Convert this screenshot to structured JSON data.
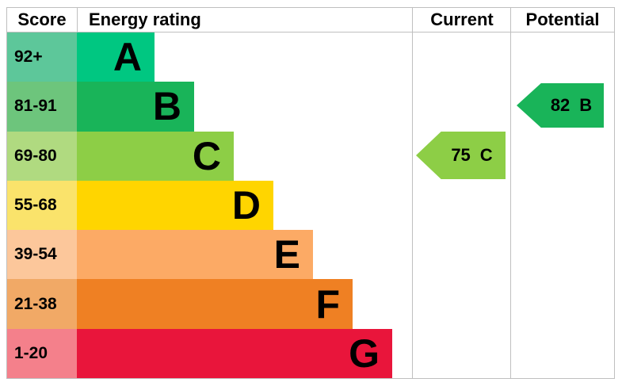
{
  "header": {
    "score": "Score",
    "energy_rating": "Energy rating",
    "current": "Current",
    "potential": "Potential"
  },
  "rows": [
    {
      "score": "92+",
      "letter": "A",
      "bar_color": "#00c781",
      "score_bg": "#5dc79a"
    },
    {
      "score": "81-91",
      "letter": "B",
      "bar_color": "#19b459",
      "score_bg": "#6dc57c"
    },
    {
      "score": "69-80",
      "letter": "C",
      "bar_color": "#8dce46",
      "score_bg": "#b0da80"
    },
    {
      "score": "55-68",
      "letter": "D",
      "bar_color": "#ffd500",
      "score_bg": "#fae36b"
    },
    {
      "score": "39-54",
      "letter": "E",
      "bar_color": "#fcaa65",
      "score_bg": "#fcc79b"
    },
    {
      "score": "21-38",
      "letter": "F",
      "bar_color": "#ef8023",
      "score_bg": "#f1a966"
    },
    {
      "score": "1-20",
      "letter": "G",
      "bar_color": "#e9153b",
      "score_bg": "#f4808b"
    }
  ],
  "markers": {
    "current": {
      "value": "75",
      "letter": "C",
      "color": "#8dce46"
    },
    "potential": {
      "value": "82",
      "letter": "B",
      "color": "#19b459"
    }
  },
  "colors": {
    "border": "#bfbfbf",
    "text": "#000000"
  },
  "chart_data": {
    "type": "bar",
    "title": "Energy rating (EPC band chart)",
    "categories": [
      "A",
      "B",
      "C",
      "D",
      "E",
      "F",
      "G"
    ],
    "score_ranges": [
      "92+",
      "81-91",
      "69-80",
      "55-68",
      "39-54",
      "21-38",
      "1-20"
    ],
    "band_colors": [
      "#00c781",
      "#19b459",
      "#8dce46",
      "#ffd500",
      "#fcaa65",
      "#ef8023",
      "#e9153b"
    ],
    "bar_relative_lengths": [
      1,
      1.5,
      2,
      2.5,
      3,
      3.5,
      4
    ],
    "columns": [
      "Score",
      "Energy rating",
      "Current",
      "Potential"
    ],
    "current": {
      "score": 75,
      "band": "C"
    },
    "potential": {
      "score": 82,
      "band": "B"
    },
    "legend_position": "none",
    "grid": false
  }
}
